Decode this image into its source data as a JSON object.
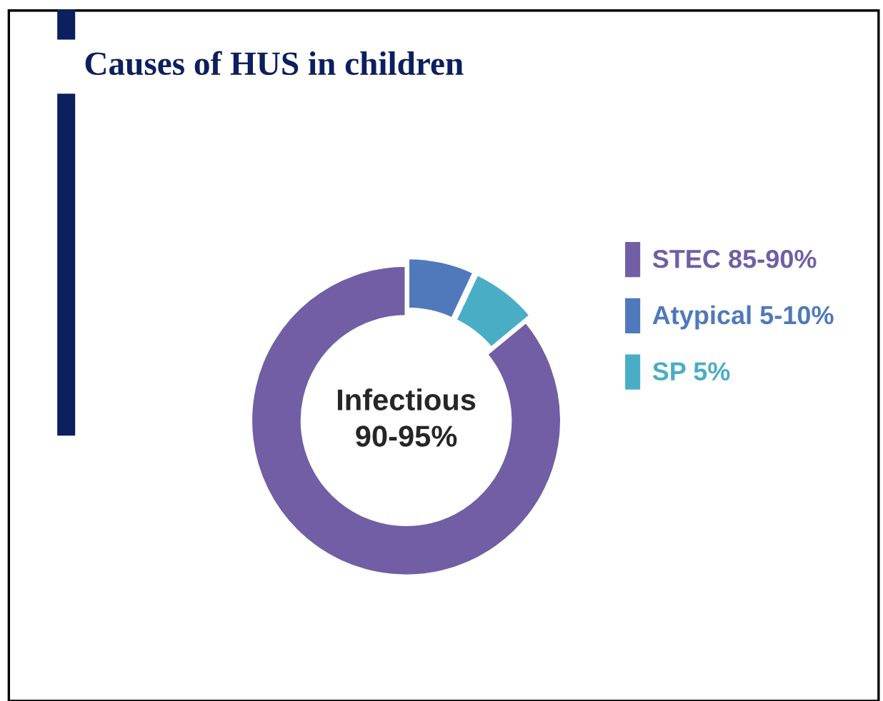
{
  "chart_data": {
    "type": "donut",
    "title": "Causes of HUS in children",
    "categories": [
      "STEC 85-90%",
      "Atypical 5-10%",
      "SP 5%"
    ],
    "values": [
      86,
      7,
      7
    ],
    "colors": [
      "#715ea5",
      "#4f79bb",
      "#49adc5"
    ],
    "annotations": [
      "Infectious\n90-95%"
    ],
    "legend": "right"
  }
}
